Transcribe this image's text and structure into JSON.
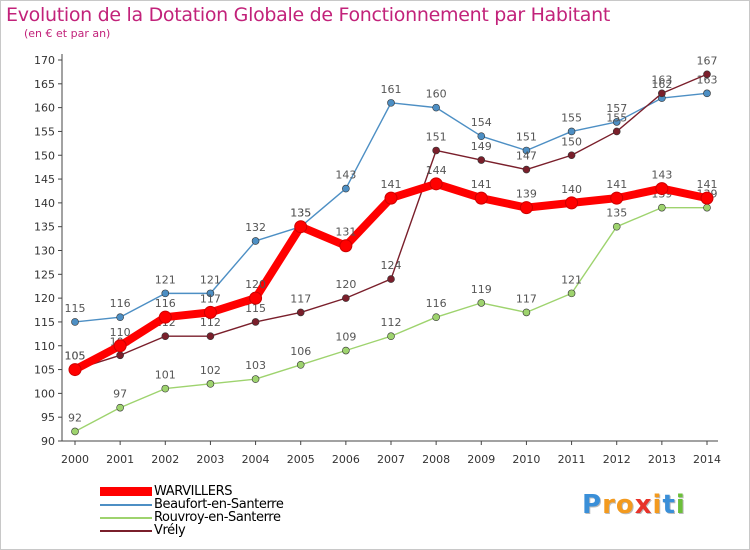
{
  "chart_data": {
    "type": "line",
    "title": "Evolution de la Dotation Globale de Fonctionnement par Habitant",
    "subtitle": "(en € et par an)",
    "xlabel": "",
    "ylabel": "",
    "ylim": [
      90,
      170
    ],
    "ytick_step": 5,
    "grid": "none",
    "legend_position": "bottom-left",
    "categories": [
      "2000",
      "2001",
      "2002",
      "2003",
      "2004",
      "2005",
      "2006",
      "2007",
      "2008",
      "2009",
      "2010",
      "2011",
      "2012",
      "2013",
      "2014"
    ],
    "series": [
      {
        "name": "Beaufort-en-Santerre",
        "color": "#4d8fc4",
        "values": [
          115,
          116,
          121,
          121,
          132,
          135,
          143,
          161,
          160,
          154,
          151,
          155,
          157,
          162,
          163
        ],
        "labels": [
          "115",
          "116",
          "121",
          "121",
          "132",
          "135",
          "143",
          "161",
          "160",
          "154",
          "151",
          "155",
          "157",
          "162",
          "163"
        ]
      },
      {
        "name": "Rouvroy-en-Santerre",
        "color": "#9ed36e",
        "values": [
          92,
          97,
          101,
          102,
          103,
          106,
          109,
          112,
          116,
          119,
          117,
          121,
          135,
          139,
          139
        ],
        "labels": [
          "92",
          "97",
          "101",
          "102",
          "103",
          "106",
          "109",
          "112",
          "116",
          "119",
          "117",
          "121",
          "135",
          "139",
          "139"
        ]
      },
      {
        "name": "Vrély",
        "color": "#7a1f2b",
        "values": [
          105,
          108,
          112,
          112,
          115,
          117,
          120,
          124,
          151,
          149,
          147,
          150,
          155,
          163,
          167
        ],
        "labels": [
          "105",
          "108",
          "112",
          "112",
          "115",
          "117",
          "120",
          "124",
          "151",
          "149",
          "147",
          "150",
          "155",
          "163",
          "167"
        ]
      },
      {
        "name": "WARVILLERS",
        "color": "#ff0000",
        "values": [
          105,
          110,
          116,
          117,
          120,
          135,
          131,
          141,
          144,
          141,
          139,
          140,
          141,
          143,
          141
        ],
        "labels": [
          "105",
          "110",
          "116",
          "117",
          "120",
          "135",
          "131",
          "141",
          "144",
          "141",
          "139",
          "140",
          "141",
          "143",
          "141"
        ]
      }
    ]
  },
  "legend": {
    "items": [
      {
        "label": "WARVILLERS",
        "color": "#ff0000"
      },
      {
        "label": "Beaufort-en-Santerre",
        "color": "#4d8fc4"
      },
      {
        "label": "Rouvroy-en-Santerre",
        "color": "#9ed36e"
      },
      {
        "label": "Vrély",
        "color": "#7a1f2b"
      }
    ]
  },
  "logo": {
    "letters": [
      "P",
      "r",
      "o",
      "x",
      "i",
      "t",
      "i"
    ],
    "colors": [
      "#3a8fd8",
      "#f39a1e",
      "#f39a1e",
      "#e8332a",
      "#f39a1e",
      "#3a8fd8",
      "#6cbf3a"
    ]
  }
}
